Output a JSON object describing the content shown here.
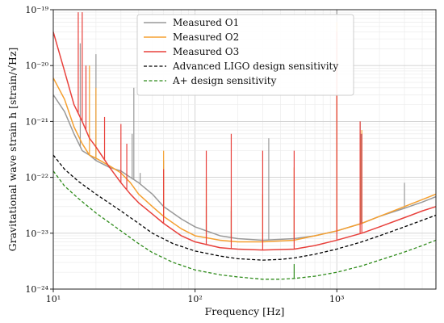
{
  "chart_data": {
    "type": "line",
    "xlabel": "Frequency [Hz]",
    "ylabel": "Gravitational wave strain h [strain/√Hz]",
    "xscale": "log",
    "yscale": "log",
    "xlim": [
      10,
      5000
    ],
    "ylim": [
      1e-24,
      1e-19
    ],
    "grid": true,
    "legend": "top-right",
    "x_ticks": [
      {
        "value": 10,
        "label": "10¹"
      },
      {
        "value": 100,
        "label": "10²"
      },
      {
        "value": 1000,
        "label": "10³"
      }
    ],
    "y_ticks": [
      {
        "value": 1e-24,
        "label": "10⁻²⁴"
      },
      {
        "value": 1e-23,
        "label": "10⁻²³"
      },
      {
        "value": 1e-22,
        "label": "10⁻²²"
      },
      {
        "value": 1e-21,
        "label": "10⁻²¹"
      },
      {
        "value": 1e-20,
        "label": "10⁻²⁰"
      },
      {
        "value": 1e-19,
        "label": "10⁻¹⁹"
      }
    ],
    "series": [
      {
        "name": "Measured O1",
        "color": "#999999",
        "style": "solid",
        "x": [
          10,
          12,
          14,
          16,
          18,
          20,
          25,
          30,
          35,
          40,
          50,
          60,
          80,
          100,
          150,
          200,
          300,
          500,
          700,
          1000,
          1500,
          2000,
          3000,
          4000,
          5000
        ],
        "y": [
          3e-21,
          1.5e-21,
          6e-22,
          3e-22,
          2.5e-22,
          2e-22,
          1.5e-22,
          1.3e-22,
          1e-22,
          8e-23,
          5e-23,
          3e-23,
          1.8e-23,
          1.3e-23,
          9e-24,
          8e-24,
          7.5e-24,
          8e-24,
          9e-24,
          1.1e-23,
          1.5e-23,
          2e-23,
          2.8e-23,
          3.6e-23,
          4.5e-23
        ],
        "spikes": [
          {
            "x": 15.5,
            "y": 2.5e-20
          },
          {
            "x": 20,
            "y": 1.6e-20
          },
          {
            "x": 36,
            "y": 6e-22
          },
          {
            "x": 37,
            "y": 4e-21
          },
          {
            "x": 41,
            "y": 1.2e-22
          },
          {
            "x": 60,
            "y": 2e-22
          },
          {
            "x": 120,
            "y": 3e-23
          },
          {
            "x": 180,
            "y": 2.5e-23
          },
          {
            "x": 331,
            "y": 5e-22
          },
          {
            "x": 500,
            "y": 3e-23
          },
          {
            "x": 1000,
            "y": 1e-19
          },
          {
            "x": 1460,
            "y": 1e-21
          },
          {
            "x": 1480,
            "y": 6e-22
          },
          {
            "x": 3000,
            "y": 8e-23
          }
        ]
      },
      {
        "name": "Measured O2",
        "color": "#f5a030",
        "style": "solid",
        "x": [
          10,
          12,
          14,
          16,
          18,
          20,
          25,
          30,
          35,
          40,
          50,
          60,
          80,
          100,
          150,
          200,
          300,
          500,
          700,
          1000,
          1500,
          2000,
          3000,
          4000,
          5000
        ],
        "y": [
          6e-21,
          2.5e-21,
          8e-22,
          4e-22,
          2.5e-22,
          2.2e-22,
          1.6e-22,
          1.2e-22,
          8e-23,
          5e-23,
          3e-23,
          2e-23,
          1.2e-23,
          9e-24,
          7.5e-24,
          7e-24,
          7e-24,
          7.5e-24,
          9e-24,
          1.1e-23,
          1.5e-23,
          2e-23,
          3e-23,
          4e-23,
          5e-23
        ],
        "spikes": [
          {
            "x": 18,
            "y": 1e-20
          },
          {
            "x": 20,
            "y": 4e-21
          },
          {
            "x": 60,
            "y": 3e-22
          },
          {
            "x": 120,
            "y": 1e-22
          },
          {
            "x": 180,
            "y": 3e-23
          },
          {
            "x": 300,
            "y": 5e-23
          },
          {
            "x": 500,
            "y": 1.5e-22
          },
          {
            "x": 1000,
            "y": 6e-20
          },
          {
            "x": 1460,
            "y": 5e-22
          },
          {
            "x": 1500,
            "y": 7e-22
          }
        ]
      },
      {
        "name": "Measured O3",
        "color": "#e8413c",
        "style": "solid",
        "x": [
          10,
          12,
          14,
          16,
          18,
          20,
          25,
          30,
          35,
          40,
          50,
          60,
          80,
          100,
          150,
          200,
          300,
          500,
          700,
          1000,
          1500,
          2000,
          3000,
          4000,
          5000
        ],
        "y": [
          4e-20,
          8e-21,
          2e-21,
          1e-21,
          5e-22,
          3.5e-22,
          1.5e-22,
          8e-23,
          5e-23,
          3.5e-23,
          2.2e-23,
          1.5e-23,
          9e-24,
          7e-24,
          5.5e-24,
          5.2e-24,
          5e-24,
          5.2e-24,
          6e-24,
          7.5e-24,
          1e-23,
          1.3e-23,
          1.9e-23,
          2.5e-23,
          3e-23
        ],
        "spikes": [
          {
            "x": 15,
            "y": 9e-20
          },
          {
            "x": 16,
            "y": 9e-20
          },
          {
            "x": 17,
            "y": 1e-20
          },
          {
            "x": 23,
            "y": 1.2e-21
          },
          {
            "x": 30,
            "y": 9e-22
          },
          {
            "x": 33,
            "y": 4e-22
          },
          {
            "x": 60,
            "y": 1.4e-22
          },
          {
            "x": 120,
            "y": 3e-22
          },
          {
            "x": 180,
            "y": 6e-22
          },
          {
            "x": 300,
            "y": 3e-22
          },
          {
            "x": 500,
            "y": 3e-22
          },
          {
            "x": 1000,
            "y": 4e-20
          },
          {
            "x": 1460,
            "y": 1e-21
          },
          {
            "x": 1500,
            "y": 6e-22
          }
        ]
      },
      {
        "name": "Advanced LIGO design sensitivity",
        "color": "#000000",
        "style": "dashed",
        "x": [
          10,
          12,
          15,
          20,
          30,
          40,
          50,
          70,
          100,
          150,
          200,
          300,
          400,
          500,
          700,
          1000,
          1500,
          2000,
          3000,
          4000,
          5000
        ],
        "y": [
          2.5e-22,
          1.4e-22,
          8.5e-23,
          5e-23,
          2.5e-23,
          1.5e-23,
          1e-23,
          6.5e-24,
          4.8e-24,
          3.9e-24,
          3.5e-24,
          3.3e-24,
          3.4e-24,
          3.6e-24,
          4.2e-24,
          5.2e-24,
          7e-24,
          9e-24,
          1.3e-23,
          1.7e-23,
          2.1e-23
        ]
      },
      {
        "name": "A+ design sensitivity",
        "color": "#2e8b1a",
        "style": "dashed",
        "x": [
          10,
          12,
          15,
          20,
          30,
          40,
          50,
          70,
          100,
          150,
          200,
          300,
          400,
          500,
          700,
          1000,
          1500,
          2000,
          3000,
          4000,
          5000
        ],
        "y": [
          1.3e-22,
          7e-23,
          4.2e-23,
          2.3e-23,
          1.1e-23,
          6.5e-24,
          4.5e-24,
          3e-24,
          2.2e-24,
          1.8e-24,
          1.65e-24,
          1.5e-24,
          1.5e-24,
          1.55e-24,
          1.7e-24,
          2e-24,
          2.6e-24,
          3.3e-24,
          4.6e-24,
          6e-24,
          7.5e-24
        ],
        "spikes": [
          {
            "x": 500,
            "y": 2.8e-24
          }
        ]
      }
    ]
  }
}
